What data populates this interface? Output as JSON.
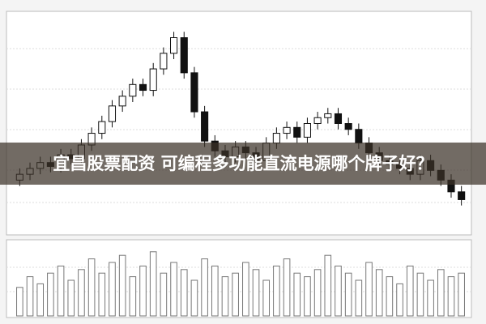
{
  "chart_data": [
    {
      "type": "candlestick",
      "title": "宜昌股票配资 可编程多功能直流电源哪个牌子好？",
      "open": [
        112,
        118,
        124,
        130,
        126,
        138,
        134,
        148,
        160,
        172,
        188,
        198,
        210,
        204,
        226,
        242,
        258,
        222,
        182,
        152,
        142,
        136,
        146,
        140,
        132,
        150,
        160,
        166,
        156,
        170,
        176,
        180,
        170,
        164,
        150,
        140,
        132,
        128,
        124,
        118,
        132,
        122,
        112,
        100
      ],
      "high": [
        124,
        130,
        136,
        136,
        144,
        144,
        154,
        166,
        178,
        194,
        204,
        216,
        216,
        232,
        248,
        264,
        264,
        228,
        188,
        158,
        148,
        152,
        152,
        146,
        156,
        166,
        172,
        172,
        176,
        182,
        186,
        186,
        176,
        170,
        156,
        146,
        138,
        134,
        130,
        138,
        138,
        128,
        118,
        106
      ],
      "low": [
        106,
        112,
        118,
        120,
        120,
        128,
        128,
        142,
        154,
        166,
        182,
        192,
        198,
        198,
        220,
        236,
        216,
        176,
        146,
        136,
        130,
        130,
        134,
        126,
        126,
        144,
        154,
        150,
        150,
        164,
        170,
        164,
        158,
        144,
        134,
        126,
        122,
        118,
        112,
        112,
        116,
        106,
        94,
        86
      ],
      "close": [
        118,
        124,
        130,
        126,
        138,
        134,
        148,
        160,
        172,
        188,
        198,
        210,
        204,
        226,
        242,
        258,
        222,
        182,
        152,
        142,
        136,
        146,
        140,
        132,
        150,
        160,
        166,
        156,
        170,
        176,
        180,
        170,
        164,
        150,
        140,
        132,
        128,
        124,
        118,
        132,
        122,
        112,
        100,
        92
      ],
      "ylim": [
        60,
        280
      ],
      "up_color": "#ffffff",
      "down_color": "#111111"
    },
    {
      "type": "bar",
      "values": [
        40,
        55,
        45,
        60,
        70,
        50,
        65,
        80,
        60,
        75,
        85,
        55,
        70,
        90,
        60,
        75,
        65,
        50,
        80,
        70,
        55,
        60,
        75,
        65,
        50,
        70,
        80,
        60,
        55,
        65,
        85,
        70,
        60,
        50,
        75,
        65,
        55,
        45,
        70,
        60,
        50,
        65,
        55,
        60
      ],
      "ylim": [
        0,
        100
      ],
      "color": "#ffffff"
    }
  ]
}
